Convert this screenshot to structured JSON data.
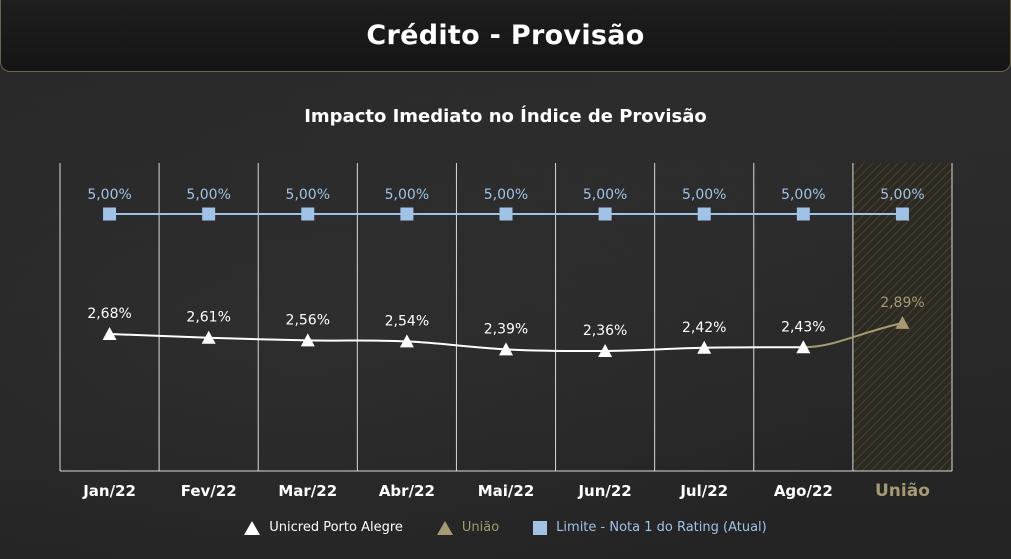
{
  "header": {
    "title": "Crédito - Provisão"
  },
  "chart_data": {
    "type": "line",
    "title": "Impacto Imediato no Índice de Provisão",
    "categories": [
      "Jan/22",
      "Fev/22",
      "Mar/22",
      "Abr/22",
      "Mai/22",
      "Jun/22",
      "Jul/22",
      "Ago/22",
      "União"
    ],
    "series": [
      {
        "name": "Unicred Porto Alegre",
        "values": [
          2.68,
          2.61,
          2.56,
          2.54,
          2.39,
          2.36,
          2.42,
          2.43,
          null
        ],
        "labels": [
          "2,68%",
          "2,61%",
          "2,56%",
          "2,54%",
          "2,39%",
          "2,36%",
          "2,42%",
          "2,43%",
          ""
        ],
        "color": "#ffffff",
        "marker": "triangle"
      },
      {
        "name": "União",
        "values": [
          null,
          null,
          null,
          null,
          null,
          null,
          null,
          null,
          2.89
        ],
        "labels": [
          "",
          "",
          "",
          "",
          "",
          "",
          "",
          "",
          "2,89%"
        ],
        "color": "#a59a72",
        "marker": "triangle"
      },
      {
        "name": "Limite - Nota 1 do Rating (Atual)",
        "values": [
          5.0,
          5.0,
          5.0,
          5.0,
          5.0,
          5.0,
          5.0,
          5.0,
          5.0
        ],
        "labels": [
          "5,00%",
          "5,00%",
          "5,00%",
          "5,00%",
          "5,00%",
          "5,00%",
          "5,00%",
          "5,00%",
          "5,00%"
        ],
        "color": "#9fc2e6",
        "marker": "square"
      }
    ],
    "highlight_category": "União",
    "highlight_color": "#a59a72",
    "category_label_color": "#ffffff",
    "grid": "vertical",
    "legend_position": "bottom"
  }
}
